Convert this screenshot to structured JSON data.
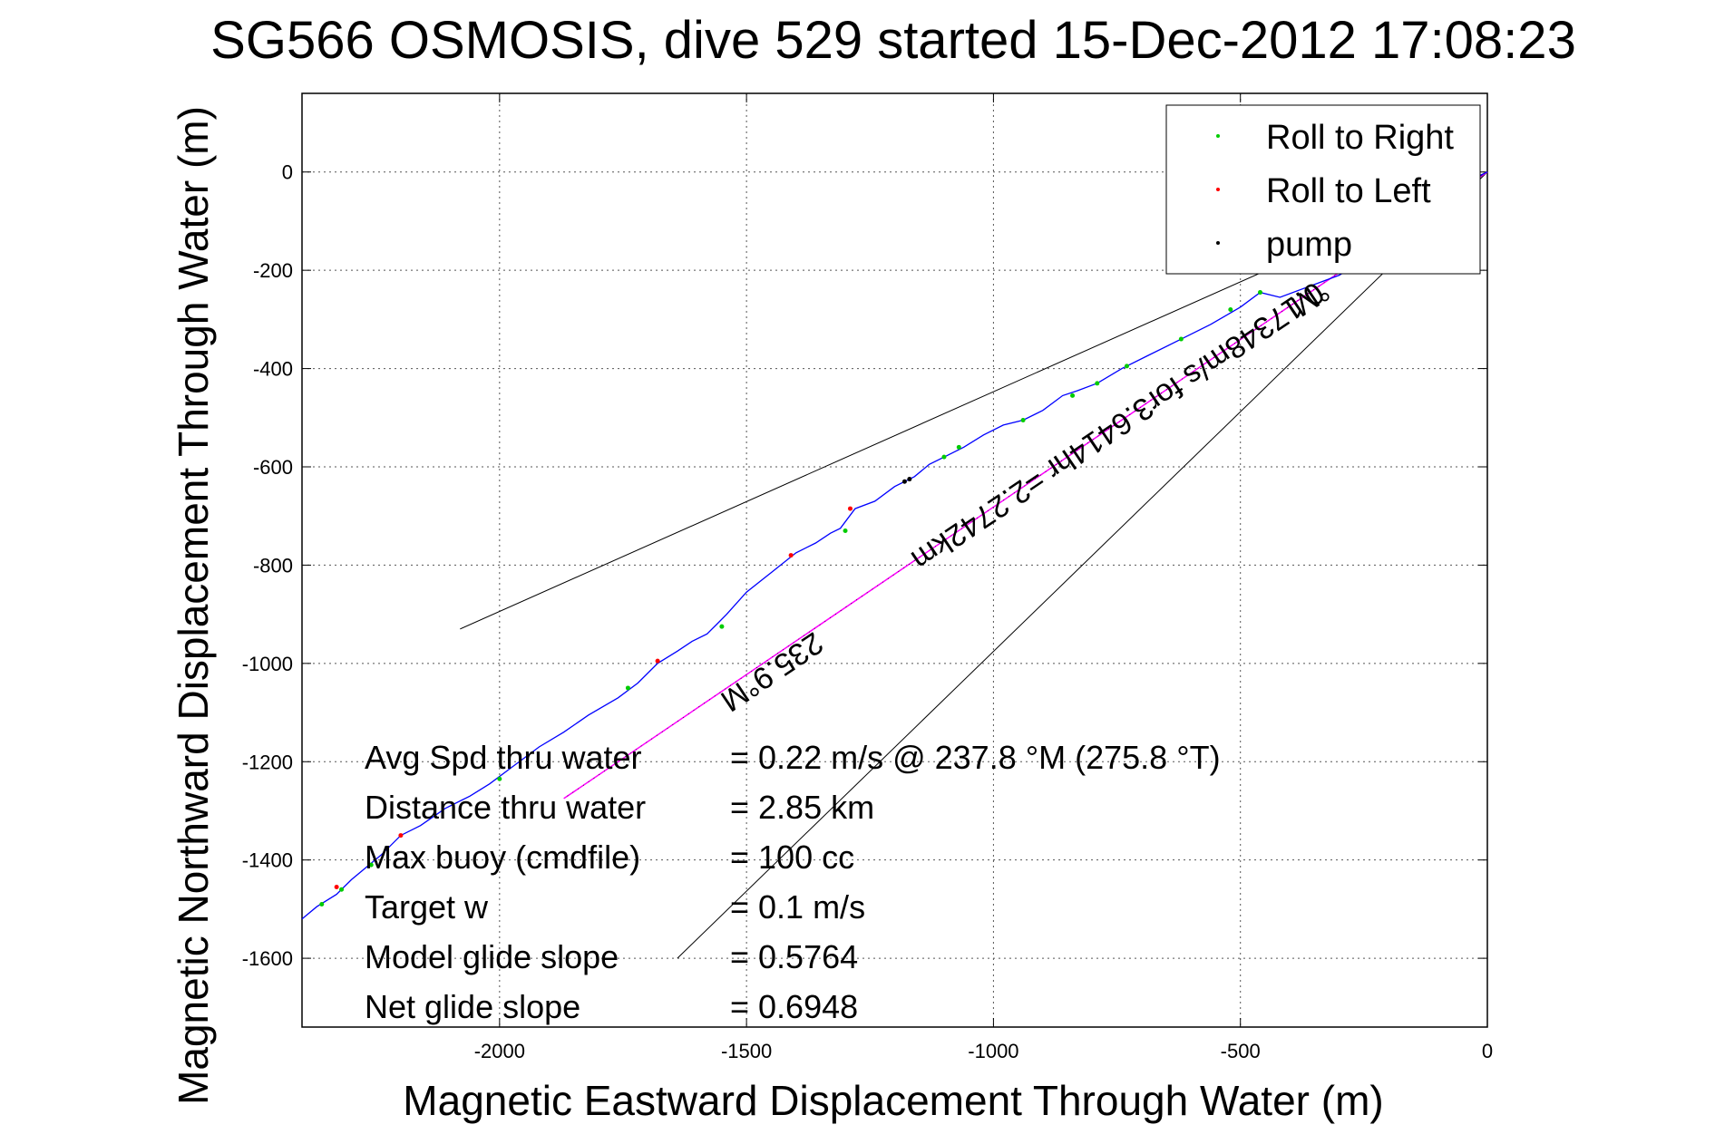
{
  "chart_data": {
    "type": "line",
    "title": "SG566 OSMOSIS, dive 529 started 15-Dec-2012 17:08:23",
    "xlabel": "Magnetic Eastward Displacement Through Water (m)",
    "ylabel": "Magnetic Northward Displacement Through Water (m)",
    "xlim": [
      -2400,
      0
    ],
    "ylim": [
      -1740,
      160
    ],
    "xticks": [
      -2000,
      -1500,
      -1000,
      -500,
      0
    ],
    "yticks": [
      0,
      -200,
      -400,
      -600,
      -800,
      -1000,
      -1200,
      -1400,
      -1600
    ],
    "grid": true,
    "legend": {
      "placement": "top-right",
      "entries": [
        {
          "label": "Roll to Right",
          "color": "#00cc00",
          "marker": "dot"
        },
        {
          "label": "Roll to Left",
          "color": "#ff0000",
          "marker": "dot"
        },
        {
          "label": "pump",
          "color": "#000000",
          "marker": "dot"
        }
      ]
    },
    "track": {
      "color": "#0000ff",
      "points": [
        [
          0,
          0
        ],
        [
          -60,
          -30
        ],
        [
          -120,
          -80
        ],
        [
          -200,
          -150
        ],
        [
          -300,
          -210
        ],
        [
          -420,
          -255
        ],
        [
          -460,
          -245
        ],
        [
          -500,
          -275
        ],
        [
          -560,
          -310
        ],
        [
          -620,
          -340
        ],
        [
          -690,
          -375
        ],
        [
          -740,
          -400
        ],
        [
          -790,
          -430
        ],
        [
          -830,
          -445
        ],
        [
          -860,
          -455
        ],
        [
          -900,
          -485
        ],
        [
          -940,
          -505
        ],
        [
          -980,
          -515
        ],
        [
          -1020,
          -535
        ],
        [
          -1060,
          -560
        ],
        [
          -1100,
          -580
        ],
        [
          -1130,
          -595
        ],
        [
          -1160,
          -620
        ],
        [
          -1200,
          -640
        ],
        [
          -1240,
          -670
        ],
        [
          -1280,
          -685
        ],
        [
          -1310,
          -725
        ],
        [
          -1330,
          -735
        ],
        [
          -1360,
          -755
        ],
        [
          -1400,
          -775
        ],
        [
          -1450,
          -815
        ],
        [
          -1500,
          -855
        ],
        [
          -1540,
          -900
        ],
        [
          -1560,
          -920
        ],
        [
          -1580,
          -940
        ],
        [
          -1610,
          -955
        ],
        [
          -1640,
          -975
        ],
        [
          -1680,
          -1000
        ],
        [
          -1720,
          -1040
        ],
        [
          -1760,
          -1070
        ],
        [
          -1820,
          -1105
        ],
        [
          -1870,
          -1140
        ],
        [
          -1920,
          -1170
        ],
        [
          -1980,
          -1215
        ],
        [
          -2020,
          -1245
        ],
        [
          -2060,
          -1270
        ],
        [
          -2110,
          -1295
        ],
        [
          -2160,
          -1330
        ],
        [
          -2200,
          -1350
        ],
        [
          -2240,
          -1390
        ],
        [
          -2300,
          -1440
        ],
        [
          -2330,
          -1470
        ],
        [
          -2370,
          -1495
        ],
        [
          -2400,
          -1520
        ]
      ]
    },
    "roll_right_points": [
      [
        -460,
        -245
      ],
      [
        -520,
        -280
      ],
      [
        -620,
        -340
      ],
      [
        -730,
        -395
      ],
      [
        -790,
        -430
      ],
      [
        -840,
        -455
      ],
      [
        -940,
        -505
      ],
      [
        -1070,
        -560
      ],
      [
        -1100,
        -580
      ],
      [
        -1300,
        -730
      ],
      [
        -1550,
        -925
      ],
      [
        -1740,
        -1050
      ],
      [
        -2000,
        -1235
      ],
      [
        -2260,
        -1410
      ],
      [
        -2320,
        -1460
      ],
      [
        -2360,
        -1490
      ]
    ],
    "roll_left_points": [
      [
        -1410,
        -780
      ],
      [
        -1290,
        -685
      ],
      [
        -1680,
        -995
      ],
      [
        -2330,
        -1455
      ],
      [
        -2200,
        -1350
      ]
    ],
    "pump_points": [
      [
        -1180,
        -630
      ],
      [
        -1170,
        -625
      ]
    ],
    "heading_line": {
      "color": "#ff00ff",
      "from": [
        0,
        0
      ],
      "to": [
        -1870,
        -1275
      ]
    },
    "wedge_lines": {
      "color": "#000000",
      "upper": {
        "from": [
          0,
          0
        ],
        "to": [
          -2080,
          -930
        ]
      },
      "lower": {
        "from": [
          0,
          0
        ],
        "to": [
          -1640,
          -1600
        ]
      }
    },
    "annotations": [
      {
        "text": "235.9°M",
        "rotation": -34,
        "anchor": [
          -1460,
          -1000
        ]
      },
      {
        "text": "0.17348m/s for3.6414hr =2.2742km",
        "rotation": -34,
        "anchor": [
          -760,
          -500
        ]
      },
      {
        "text": "°M",
        "rotation": -34,
        "anchor": [
          -370,
          -240
        ]
      }
    ],
    "stats": [
      {
        "label": "Avg Spd thru water",
        "value": "=  0.22 m/s @ 237.8 °M (275.8 °T)"
      },
      {
        "label": "Distance thru water",
        "value": "=  2.85 km"
      },
      {
        "label": "Max buoy (cmdfile)",
        "value": "= 100 cc"
      },
      {
        "label": "Target w",
        "value": "= 0.1 m/s"
      },
      {
        "label": "Model glide slope",
        "value": "= 0.5764"
      },
      {
        "label": "Net glide slope",
        "value": "= 0.6948"
      }
    ]
  }
}
